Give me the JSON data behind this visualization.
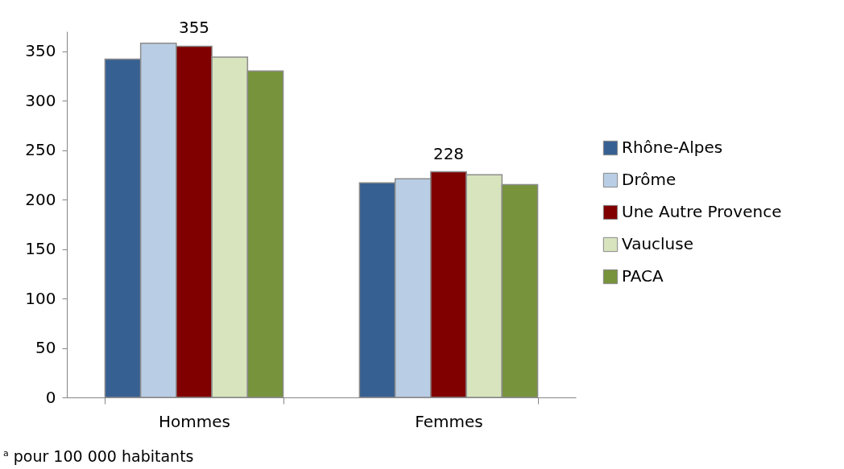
{
  "chart_data": {
    "type": "bar",
    "categories": [
      "Hommes",
      "Femmes"
    ],
    "series": [
      {
        "name": "Rhône-Alpes",
        "color": "#376092",
        "values": [
          342,
          217
        ]
      },
      {
        "name": "Drôme",
        "color": "#b9cde5",
        "values": [
          358,
          221
        ]
      },
      {
        "name": "Une Autre Provence",
        "color": "#800000",
        "values": [
          355,
          228
        ],
        "value_labels": [
          "355",
          "228"
        ]
      },
      {
        "name": "Vaucluse",
        "color": "#d7e4bd",
        "values": [
          344,
          225
        ]
      },
      {
        "name": "PACA",
        "color": "#77933c",
        "values": [
          330,
          215
        ]
      }
    ],
    "ylim": [
      0,
      370
    ],
    "yticks": [
      0,
      50,
      100,
      150,
      200,
      250,
      300,
      350
    ],
    "grid": false,
    "legend": "right",
    "annotations": [
      "$^{a}$ pour 100 000 habitants"
    ]
  }
}
